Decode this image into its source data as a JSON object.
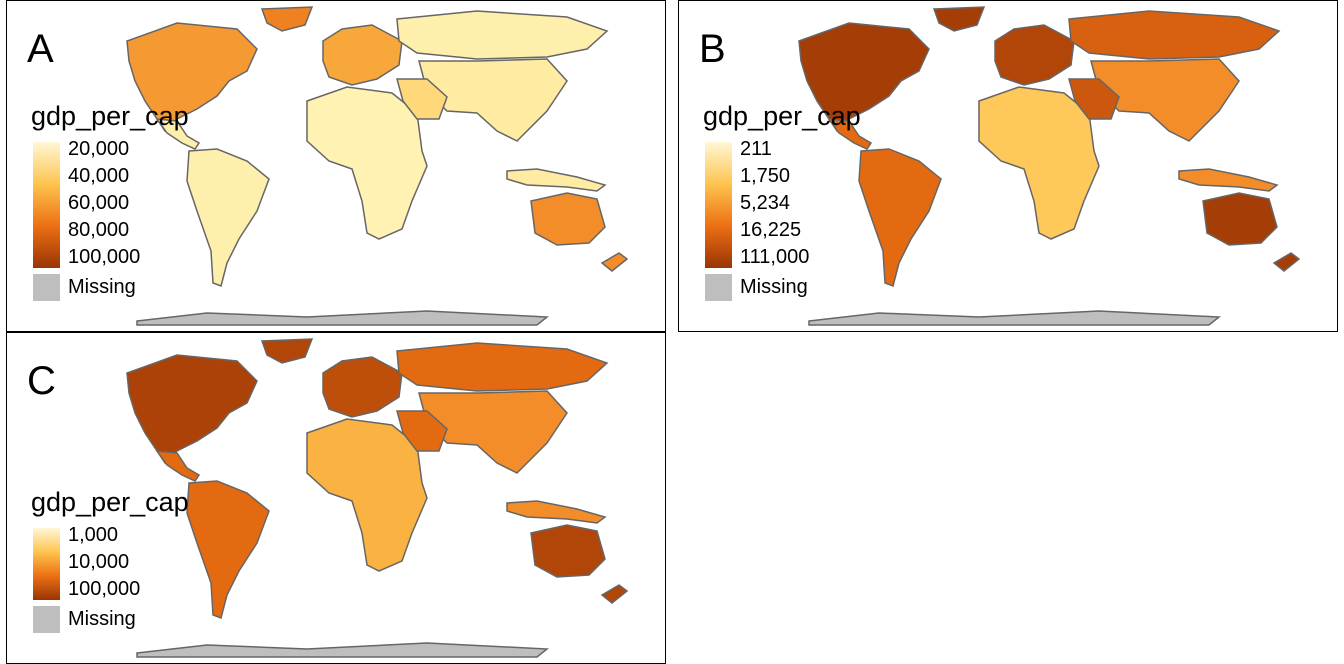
{
  "panels": [
    {
      "letter": "A",
      "legend_title": "gdp_per_cap",
      "breaks": [
        "20,000",
        "40,000",
        "60,000",
        "80,000",
        "100,000"
      ],
      "missing_label": "Missing",
      "palette": {
        "land": "#fff7d6",
        "low": "#fff7bc",
        "mid": "#fec44f",
        "high": "#ec7014",
        "top": "#993404",
        "missing": "#bebebe"
      },
      "region_levels": {
        "north_america": 0.5,
        "greenland": 0.6,
        "south_america": 0.05,
        "africa": 0.03,
        "europe": 0.45,
        "russia": 0.05,
        "asia": 0.08,
        "middle_east": 0.2,
        "australia": 0.55,
        "antarctica": -1
      }
    },
    {
      "letter": "B",
      "legend_title": "gdp_per_cap",
      "breaks": [
        "211",
        "1,750",
        "5,234",
        "16,225",
        "111,000"
      ],
      "missing_label": "Missing",
      "palette": {
        "land": "#fff7d6",
        "low": "#fff7bc",
        "mid": "#fec44f",
        "high": "#ec7014",
        "top": "#993404",
        "missing": "#bebebe"
      },
      "region_levels": {
        "north_america": 0.95,
        "greenland": 0.95,
        "south_america": 0.7,
        "africa": 0.3,
        "europe": 0.9,
        "russia": 0.75,
        "asia": 0.55,
        "middle_east": 0.8,
        "australia": 0.95,
        "antarctica": -1
      }
    },
    {
      "letter": "C",
      "legend_title": "gdp_per_cap",
      "breaks": [
        "1,000",
        "10,000",
        "100,000"
      ],
      "missing_label": "Missing",
      "palette": {
        "land": "#fff7d6",
        "low": "#fff7bc",
        "mid": "#fec44f",
        "high": "#ec7014",
        "top": "#993404",
        "missing": "#bebebe"
      },
      "region_levels": {
        "north_america": 0.92,
        "greenland": 0.9,
        "south_america": 0.7,
        "africa": 0.4,
        "europe": 0.85,
        "russia": 0.7,
        "asia": 0.55,
        "middle_east": 0.7,
        "australia": 0.9,
        "antarctica": -1
      }
    }
  ]
}
